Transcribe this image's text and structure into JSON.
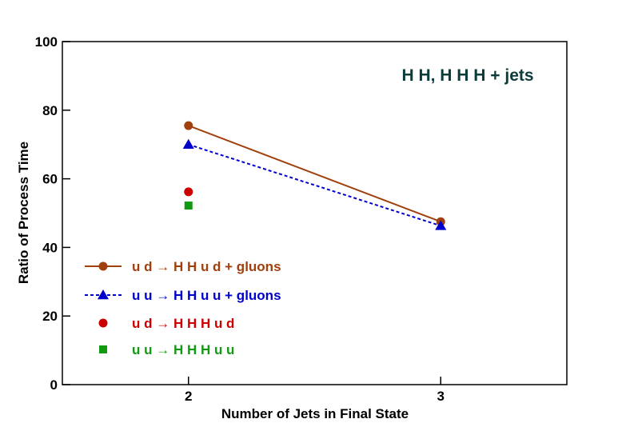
{
  "chart_data": {
    "type": "line",
    "xlabel": "Number of Jets in Final State",
    "ylabel": "Ratio of Process Time",
    "xlim": [
      1.5,
      3.5
    ],
    "ylim": [
      0,
      100
    ],
    "x_ticks": [
      2,
      3
    ],
    "y_ticks": [
      0,
      20,
      40,
      60,
      80,
      100
    ],
    "annotation": "H H, H H H + jets",
    "grid": false,
    "legend_position": "bottom-left",
    "series": [
      {
        "name": "u d → H H u d + gluons",
        "marker": "circle",
        "line": "solid",
        "color": "#a0400d",
        "x": [
          2,
          3
        ],
        "y": [
          75.5,
          47.5
        ]
      },
      {
        "name": "u u → H H u u + gluons",
        "marker": "triangle",
        "line": "dashed",
        "color": "#0000cc",
        "x": [
          2,
          3
        ],
        "y": [
          70,
          46.3
        ]
      },
      {
        "name": "u d → H H H u d",
        "marker": "circle",
        "line": "none",
        "color": "#cc0000",
        "x": [
          2
        ],
        "y": [
          56.2
        ]
      },
      {
        "name": "u u → H H H u u",
        "marker": "square",
        "line": "none",
        "color": "#119911",
        "x": [
          2
        ],
        "y": [
          52.2
        ]
      }
    ]
  },
  "colors": {
    "axis": "#000000",
    "annotation": "#0b3b3b"
  }
}
